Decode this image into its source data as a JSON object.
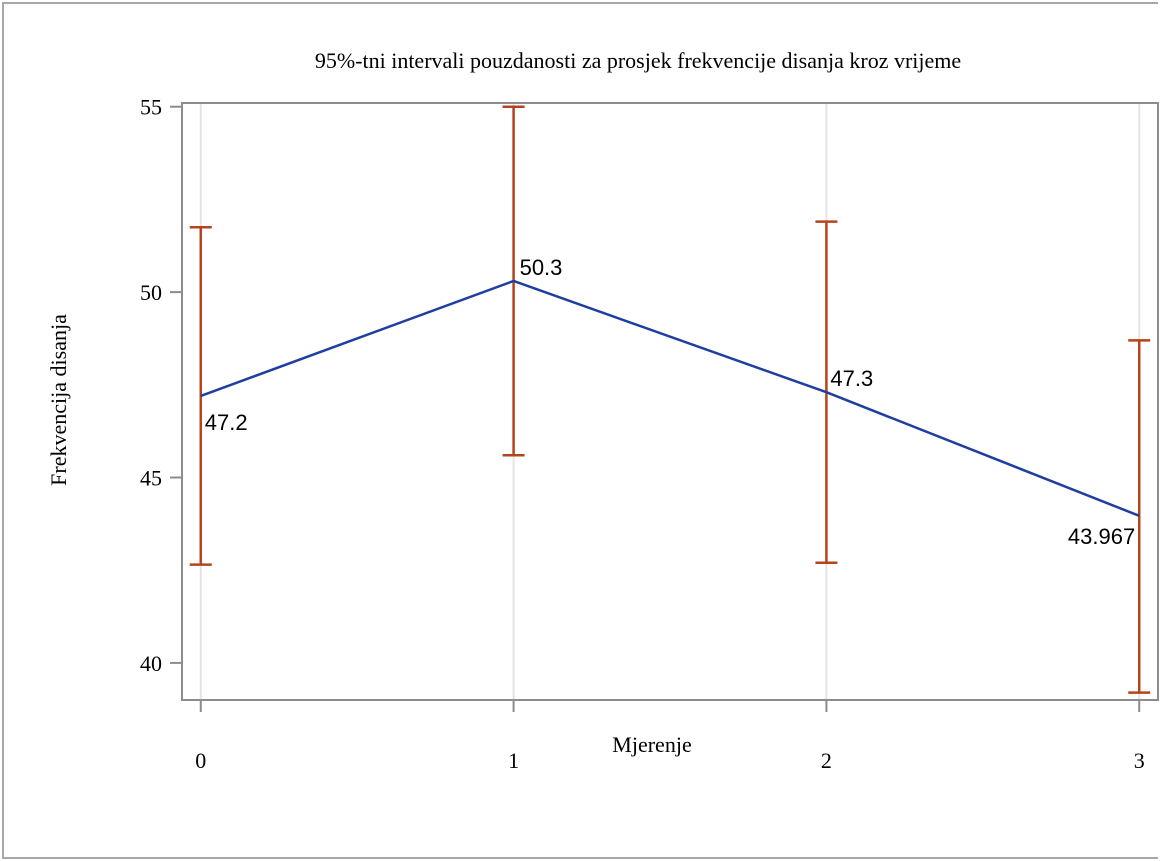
{
  "chart_data": {
    "type": "line",
    "title": "95%-tni intervali pouzdanosti za prosjek frekvencije disanja kroz vrijeme",
    "xlabel": "Mjerenje",
    "ylabel": "Frekvencija disanja",
    "x": [
      0,
      1,
      2,
      3
    ],
    "x_tick_labels": [
      "0",
      "1",
      "2",
      "3"
    ],
    "y_tick_values": [
      40,
      45,
      50,
      55
    ],
    "y_tick_labels": [
      "40",
      "45",
      "50",
      "55"
    ],
    "xlim": [
      -0.06,
      3.06
    ],
    "ylim": [
      39.0,
      55.1
    ],
    "grid": "vertical",
    "legend": "none",
    "series": [
      {
        "values": [
          47.2,
          50.3,
          47.3,
          43.967
        ],
        "data_labels": [
          "47.2",
          "50.3",
          "47.3",
          "43.967"
        ],
        "color": "#1f3fa0"
      }
    ],
    "error_bars": {
      "color": "#b5441d",
      "lower": [
        42.65,
        45.6,
        42.7,
        39.2
      ],
      "upper": [
        51.75,
        55.0,
        51.9,
        48.7
      ]
    }
  }
}
